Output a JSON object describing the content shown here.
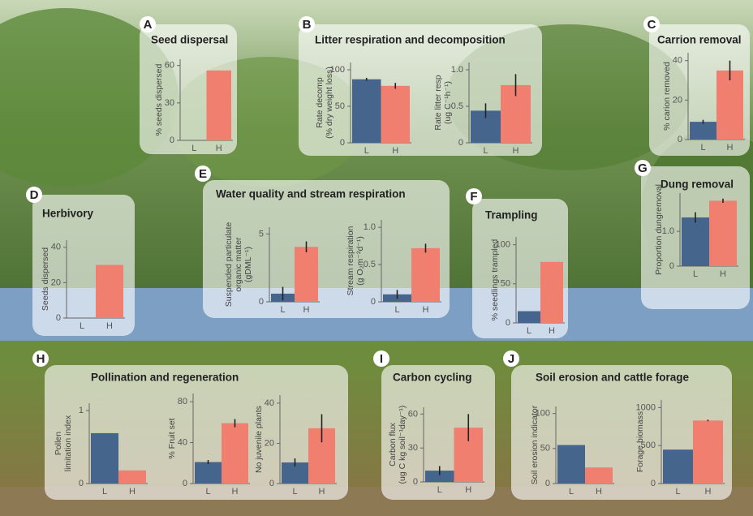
{
  "chart_data": [
    {
      "type": "bar",
      "letter": "A",
      "title": "Seed dispersal",
      "colors": [
        "#46658d",
        "#f07f6f"
      ],
      "plots": [
        {
          "ylabel": [
            "% seeds dispersed"
          ],
          "categories": [
            "L",
            "H"
          ],
          "values": [
            0,
            56
          ],
          "ylim": [
            0,
            65
          ],
          "yticks": [
            0,
            30,
            60
          ]
        }
      ]
    },
    {
      "type": "bar",
      "letter": "B",
      "title": "Litter respiration and decomposition",
      "colors": [
        "#46658d",
        "#f07f6f"
      ],
      "plots": [
        {
          "ylabel": [
            "Rate decomp",
            "(% dry weight loss)"
          ],
          "categories": [
            "L",
            "H"
          ],
          "values": [
            87,
            78
          ],
          "errors": [
            2,
            4
          ],
          "ylim": [
            0,
            110
          ],
          "yticks": [
            0,
            50,
            100
          ]
        },
        {
          "ylabel": [
            "Rate litter resp",
            "(ug C⁻¹h⁻¹)"
          ],
          "categories": [
            "L",
            "H"
          ],
          "values": [
            0.44,
            0.79
          ],
          "errors": [
            0.1,
            0.15
          ],
          "ylim": [
            0,
            1.1
          ],
          "yticks": [
            0,
            0.5,
            {
              "value": 1,
              "label": "1.0"
            }
          ]
        }
      ]
    },
    {
      "type": "bar",
      "letter": "C",
      "title": "Carrion removal",
      "colors": [
        "#46658d",
        "#f07f6f"
      ],
      "plots": [
        {
          "ylabel": [
            "% carion removed"
          ],
          "categories": [
            "L",
            "H"
          ],
          "values": [
            9,
            35
          ],
          "errors": [
            1,
            5
          ],
          "ylim": [
            0,
            44
          ],
          "yticks": [
            0,
            20,
            40
          ]
        }
      ]
    },
    {
      "type": "bar",
      "letter": "D",
      "title": "Herbivory",
      "colors": [
        "#46658d",
        "#f07f6f"
      ],
      "plots": [
        {
          "ylabel": [
            "Seeds dispersed"
          ],
          "categories": [
            "L",
            "H"
          ],
          "values": [
            0,
            30
          ],
          "ylim": [
            0,
            44
          ],
          "yticks": [
            0,
            20,
            40
          ]
        }
      ]
    },
    {
      "type": "bar",
      "letter": "E",
      "title": "Water quality and stream respiration",
      "colors": [
        "#46658d",
        "#f07f6f"
      ],
      "plots": [
        {
          "ylabel": [
            "Suspended particulate",
            "organic matter",
            "(gDML⁻¹)"
          ],
          "categories": [
            "L",
            "H"
          ],
          "values": [
            0.6,
            4.05
          ],
          "errors": [
            0.5,
            0.4
          ],
          "ylim": [
            0,
            5.5
          ],
          "yticks": [
            0,
            5
          ]
        },
        {
          "ylabel": [
            "Stream respiration",
            "(g O₂m⁻²d⁻¹)"
          ],
          "categories": [
            "L",
            "H"
          ],
          "values": [
            0.1,
            0.72
          ],
          "errors": [
            0.06,
            0.06
          ],
          "ylim": [
            0,
            1.1
          ],
          "yticks": [
            0,
            0.5,
            {
              "value": 1,
              "label": "1.0"
            }
          ]
        }
      ]
    },
    {
      "type": "bar",
      "letter": "F",
      "title": "Trampling",
      "colors": [
        "#46658d",
        "#f07f6f"
      ],
      "plots": [
        {
          "ylabel": [
            "% seedlings trampled"
          ],
          "categories": [
            "L",
            "H"
          ],
          "values": [
            15,
            78
          ],
          "ylim": [
            0,
            110
          ],
          "yticks": [
            0,
            50,
            100
          ]
        }
      ]
    },
    {
      "type": "bar",
      "letter": "G",
      "title": "Dung removal",
      "colors": [
        "#46658d",
        "#f07f6f"
      ],
      "plots": [
        {
          "ylabel": [
            "Proportion dungremoval"
          ],
          "categories": [
            "L",
            "H"
          ],
          "values": [
            1.4,
            1.88
          ],
          "errors": [
            0.15,
            0.06
          ],
          "ylim": [
            0,
            2.1
          ],
          "yticks": [
            0,
            {
              "value": 1,
              "label": "1.0"
            }
          ]
        }
      ]
    },
    {
      "type": "bar",
      "letter": "H",
      "title": "Pollination and regeneration",
      "colors": [
        "#46658d",
        "#f07f6f"
      ],
      "plots": [
        {
          "ylabel": [
            "Pollen",
            "limitation index"
          ],
          "categories": [
            "L",
            "H"
          ],
          "values": [
            0.69,
            0.18
          ],
          "ylim": [
            0,
            1.1
          ],
          "yticks": [
            0,
            1
          ]
        },
        {
          "ylabel": [
            "% Fruit set"
          ],
          "categories": [
            "L",
            "H"
          ],
          "values": [
            21,
            59
          ],
          "errors": [
            2,
            4
          ],
          "ylim": [
            0,
            88
          ],
          "yticks": [
            0,
            40,
            80
          ]
        },
        {
          "ylabel": [
            "No juvenile plants"
          ],
          "categories": [
            "L",
            "H"
          ],
          "values": [
            10.5,
            27.5
          ],
          "errors": [
            2,
            7
          ],
          "ylim": [
            0,
            44
          ],
          "yticks": [
            0,
            20,
            40
          ]
        }
      ]
    },
    {
      "type": "bar",
      "letter": "I",
      "title": "Carbon cycling",
      "colors": [
        "#46658d",
        "#f07f6f"
      ],
      "plots": [
        {
          "ylabel": [
            "Carbon flux",
            "(ug C kg soil⁻¹day⁻¹)"
          ],
          "categories": [
            "L",
            "H"
          ],
          "values": [
            10,
            48
          ],
          "errors": [
            4,
            12
          ],
          "ylim": [
            0,
            66
          ],
          "yticks": [
            0,
            30,
            60
          ]
        }
      ]
    },
    {
      "type": "bar",
      "letter": "J",
      "title": "Soil erosion and cattle forage",
      "colors": [
        "#46658d",
        "#f07f6f"
      ],
      "plots": [
        {
          "ylabel": [
            "Soil erosion indicator"
          ],
          "categories": [
            "L",
            "H"
          ],
          "values": [
            55,
            23
          ],
          "ylim": [
            0,
            110
          ],
          "yticks": [
            0,
            50,
            100
          ]
        },
        {
          "ylabel": [
            "Forage biomass"
          ],
          "categories": [
            "L",
            "H"
          ],
          "values": [
            447,
            830
          ],
          "errors": [
            null,
            10
          ],
          "ylim": [
            0,
            1100
          ],
          "yticks": [
            0,
            500,
            1000
          ]
        }
      ]
    }
  ]
}
